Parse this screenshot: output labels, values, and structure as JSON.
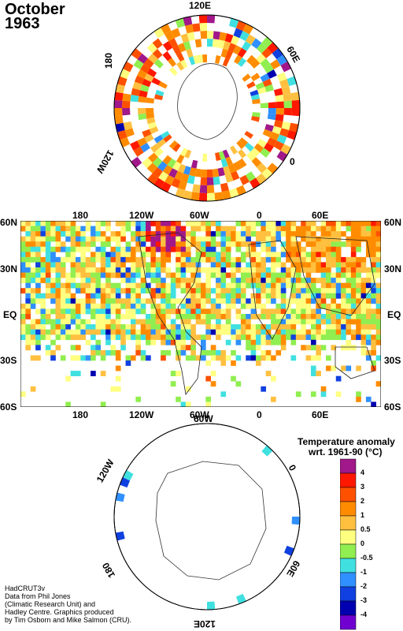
{
  "header": {
    "month": "October",
    "year": "1963"
  },
  "north_polar": {
    "labels": [
      "120E",
      "60E",
      "0",
      "120W",
      "180"
    ]
  },
  "main_map": {
    "top_labels": [
      "180",
      "120W",
      "60W",
      "0",
      "60E"
    ],
    "bottom_labels": [
      "180",
      "120W",
      "60W",
      "0",
      "60E"
    ],
    "lat_labels": [
      "60N",
      "30N",
      "EQ",
      "30S",
      "60S"
    ]
  },
  "south_polar": {
    "labels": [
      "120W",
      "0",
      "60E",
      "120E",
      "180",
      "60W"
    ]
  },
  "legend": {
    "title_line1": "Temperature anomaly",
    "title_line2": "wrt. 1961-90  (°C)",
    "ticks": [
      "4",
      "3",
      "2",
      "1",
      "0.5",
      "0",
      "-0.5",
      "-1",
      "-2",
      "-3",
      "-4"
    ],
    "colors": [
      "#a0188a",
      "#ff1800",
      "#ff5000",
      "#ff8c00",
      "#ffc040",
      "#ffff80",
      "#90ee50",
      "#40e0e0",
      "#3090ff",
      "#1040e0",
      "#0000b0",
      "#7000d0"
    ]
  },
  "credits": {
    "line1": "HadCRUT3v",
    "line2": "Data from Phil Jones",
    "line3": "(Climatic Research Unit) and",
    "line4": "Hadley Centre.  Graphics produced",
    "line5": "by Tim Osborn and Mike Salmon (CRU)."
  }
}
